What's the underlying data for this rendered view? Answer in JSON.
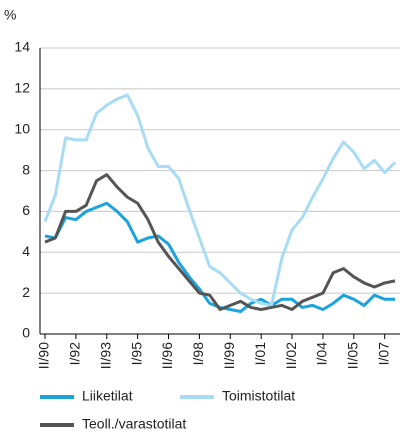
{
  "chart_data": {
    "type": "line",
    "y_label": "%",
    "categories": [
      "II/90",
      null,
      null,
      "I/92",
      null,
      null,
      "II/93",
      null,
      null,
      "I/95",
      null,
      null,
      "II/96",
      null,
      null,
      "I/98",
      null,
      null,
      "II/99",
      null,
      null,
      "I/01",
      null,
      null,
      "II/02",
      null,
      null,
      "I/04",
      null,
      null,
      "II/05",
      null,
      null,
      "I/07",
      null
    ],
    "series": [
      {
        "name": "Liiketilat",
        "color": "#1aa3dc",
        "values": [
          4.8,
          4.7,
          5.7,
          5.6,
          6.0,
          6.2,
          6.4,
          6.0,
          5.5,
          4.5,
          4.7,
          4.8,
          4.4,
          3.5,
          2.8,
          2.2,
          1.5,
          1.3,
          1.2,
          1.1,
          1.5,
          1.7,
          1.4,
          1.7,
          1.7,
          1.3,
          1.4,
          1.2,
          1.5,
          1.9,
          1.7,
          1.4,
          1.9,
          1.7,
          1.7
        ]
      },
      {
        "name": "Toimistotilat",
        "color": "#a8dcf4",
        "values": [
          5.5,
          6.8,
          9.6,
          9.5,
          9.5,
          10.8,
          11.2,
          11.5,
          11.7,
          10.7,
          9.1,
          8.2,
          8.2,
          7.6,
          6.1,
          4.7,
          3.3,
          3.0,
          2.5,
          2.0,
          1.7,
          1.5,
          1.4,
          3.7,
          5.1,
          5.7,
          6.7,
          7.6,
          8.6,
          9.4,
          8.9,
          8.1,
          8.5,
          7.9,
          8.4
        ]
      },
      {
        "name": "Teoll./varastotilat",
        "color": "#555555",
        "values": [
          4.5,
          4.7,
          6.0,
          6.0,
          6.3,
          7.5,
          7.8,
          7.2,
          6.7,
          6.4,
          5.6,
          4.5,
          3.8,
          3.2,
          2.6,
          2.0,
          1.9,
          1.2,
          1.4,
          1.6,
          1.3,
          1.2,
          1.3,
          1.4,
          1.2,
          1.6,
          1.8,
          2.0,
          3.0,
          3.2,
          2.8,
          2.5,
          2.3,
          2.5,
          2.6
        ]
      }
    ],
    "ylim": [
      0,
      14
    ],
    "yticks": [
      0,
      2,
      4,
      6,
      8,
      10,
      12,
      14
    ],
    "grid": true,
    "legend": "bottom"
  }
}
